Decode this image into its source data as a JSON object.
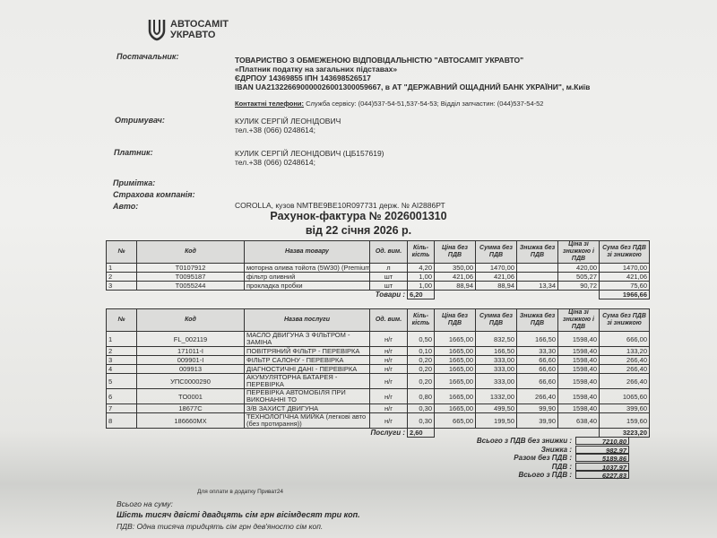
{
  "logo": {
    "line1": "АВТОСАМІТ",
    "line2": "УКРАВТО"
  },
  "supplier": {
    "label": "Постачальник:",
    "name": "ТОВАРИСТВО З ОБМЕЖЕНОЮ ВІДПОВІДАЛЬНІСТЮ  \"АВТОСАМІТ УКРАВТО\"",
    "tax": "«Платник податку на загальних підставах»",
    "codes": "ЄДРПОУ 14369855 ІПН 143698526517",
    "iban": "IBAN UA213226690000026001300059667, в АТ \"ДЕРЖАВНИЙ ОЩАДНИЙ БАНК УКРАЇНИ\", м.Київ",
    "phones_label": "Контактні телефони:",
    "phones": "Служба сервісу: (044)537-54-51,537-54-53; Відділ запчастин: (044)537-54-52"
  },
  "recipient": {
    "label": "Отримувач:",
    "name": "КУЛИК СЕРГІЙ ЛЕОНІДОВИЧ",
    "phone": "тел.+38 (066) 0248614;"
  },
  "payer": {
    "label": "Платник:",
    "name": "КУЛИК СЕРГІЙ ЛЕОНІДОВИЧ  (ЦБ157619)",
    "phone": "тел.+38 (066) 0248614;"
  },
  "note_label": "Примітка:",
  "insurance_label": "Страхова компанія:",
  "auto": {
    "label": "Авто:",
    "value": "COROLLA, кузов NMTBE9BE10R097731 держ. № АІ2886РТ"
  },
  "invoice": {
    "title": "Рахунок-фактура № 2026001310",
    "date": "від 22 січня 2026 р."
  },
  "goods": {
    "headers": [
      "№",
      "Код",
      "Назва товару",
      "Од. вим.",
      "Кіль-кість",
      "Ціна без ПДВ",
      "Сумма без ПДВ",
      "Знижка без ПДВ",
      "Ціна зі знижкою і ПДВ",
      "Сума без ПДВ зі знижкою"
    ],
    "rows": [
      [
        "1",
        "T0107912",
        "моторна олива тойота (5W30) (Premium",
        "л",
        "4,20",
        "350,00",
        "1470,00",
        "",
        "420,00",
        "1470,00"
      ],
      [
        "2",
        "T0095187",
        "фільтр оливний",
        "шт",
        "1,00",
        "421,06",
        "421,06",
        "",
        "505,27",
        "421,06"
      ],
      [
        "3",
        "T0055244",
        "прокладка пробки",
        "шт",
        "1,00",
        "88,94",
        "88,94",
        "13,34",
        "90,72",
        "75,60"
      ]
    ],
    "total_label": "Товари :",
    "total_qty": "6,20",
    "total_sum": "1966,66"
  },
  "services": {
    "headers": [
      "№",
      "Код",
      "Назва послуги",
      "Од. вим.",
      "Кіль-кість",
      "Ціна без ПДВ",
      "Сумма без ПДВ",
      "Знижка без ПДВ",
      "Ціна зі знижкою і ПДВ",
      "Сума без ПДВ зі знижкою"
    ],
    "rows": [
      [
        "1",
        "FL_002119",
        "МАСЛО ДВИГУНА З ФІЛЬТРОМ - ЗАМІНА",
        "н/г",
        "0,50",
        "1665,00",
        "832,50",
        "166,50",
        "1598,40",
        "666,00"
      ],
      [
        "2",
        "171011-I",
        "ПОВІТРЯНИЙ ФІЛЬТР - ПЕРЕВІРКА",
        "н/г",
        "0,10",
        "1665,00",
        "166,50",
        "33,30",
        "1598,40",
        "133,20"
      ],
      [
        "3",
        "009901-I",
        "ФІЛЬТР САЛОНУ - ПЕРЕВІРКА",
        "н/г",
        "0,20",
        "1665,00",
        "333,00",
        "66,60",
        "1598,40",
        "266,40"
      ],
      [
        "4",
        "009913",
        "ДІАГНОСТИЧНІ ДАНІ - ПЕРЕВІРКА",
        "н/г",
        "0,20",
        "1665,00",
        "333,00",
        "66,60",
        "1598,40",
        "266,40"
      ],
      [
        "5",
        "УПС0000290",
        "АКУМУЛЯТОРНА БАТАРЕЯ - ПЕРЕВІРКА",
        "н/г",
        "0,20",
        "1665,00",
        "333,00",
        "66,60",
        "1598,40",
        "266,40"
      ],
      [
        "6",
        "TO0001",
        "ПЕРЕВІРКА АВТОМОБІЛЯ ПРИ ВИКОНАННІ ТО",
        "н/г",
        "0,80",
        "1665,00",
        "1332,00",
        "266,40",
        "1598,40",
        "1065,60"
      ],
      [
        "7",
        "18677C",
        "З/В ЗАХИСТ ДВИГУНА",
        "н/г",
        "0,30",
        "1665,00",
        "499,50",
        "99,90",
        "1598,40",
        "399,60"
      ],
      [
        "8",
        "186660MX",
        "ТЕХНОЛОГІЧНА МИЙКА (легкові авто (без протирання))",
        "н/г",
        "0,30",
        "665,00",
        "199,50",
        "39,90",
        "638,40",
        "159,60"
      ]
    ],
    "total_label": "Послуги :",
    "total_qty": "2,60",
    "total_sum": "3223,20"
  },
  "totals": [
    {
      "label": "Всього з ПДВ без знижки :",
      "value": "7210,80"
    },
    {
      "label": "Знижка :",
      "value": "982,97"
    },
    {
      "label": "Разом без ПДВ :",
      "value": "5189,86"
    },
    {
      "label": "ПДВ :",
      "value": "1037,97"
    },
    {
      "label": "Всього з ПДВ :",
      "value": "6227,83"
    }
  ],
  "footer": {
    "privat": "Для оплати в додатку Приват24",
    "sum_label": "Всього на суму:",
    "sum_words": "Шість тисяч двісті двадцять сім грн вісімдесят три коп.",
    "vat_words": "ПДВ: Одна тисяча тридцять сім грн дев'яносто сім коп."
  }
}
